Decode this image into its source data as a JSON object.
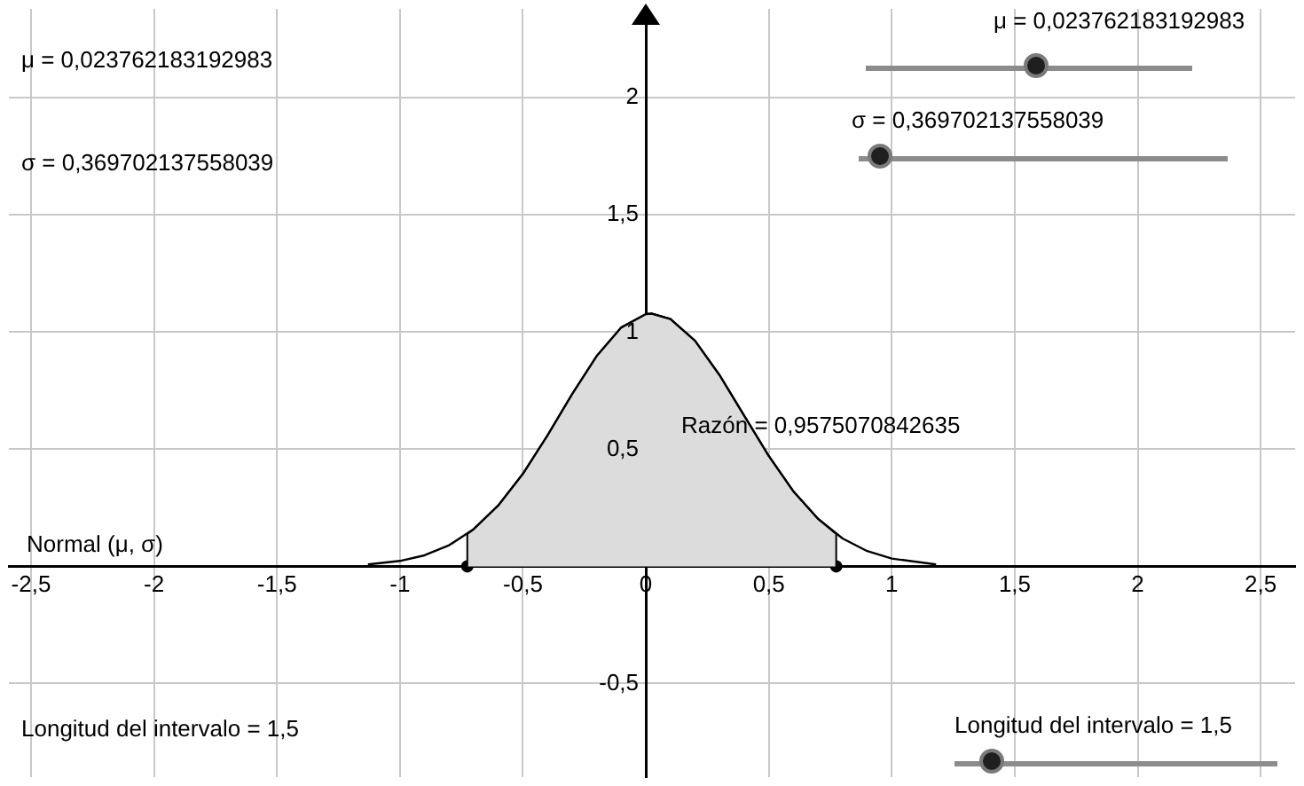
{
  "chart_data": {
    "type": "line",
    "xlim": [
      -2.59,
      2.64
    ],
    "ylim": [
      -0.9,
      2.38
    ],
    "xticks": [
      {
        "value": -2.5,
        "label": "-2,5"
      },
      {
        "value": -2,
        "label": "-2"
      },
      {
        "value": -1.5,
        "label": "-1,5"
      },
      {
        "value": -1,
        "label": "-1"
      },
      {
        "value": -0.5,
        "label": "-0,5"
      },
      {
        "value": 0,
        "label": "0"
      },
      {
        "value": 0.5,
        "label": "0,5"
      },
      {
        "value": 1,
        "label": "1"
      },
      {
        "value": 1.5,
        "label": "1,5"
      },
      {
        "value": 2,
        "label": "2"
      },
      {
        "value": 2.5,
        "label": "2,5"
      }
    ],
    "yticks": [
      {
        "value": -0.5,
        "label": "-0,5"
      },
      {
        "value": 0,
        "label": null
      },
      {
        "value": 0.5,
        "label": "0,5"
      },
      {
        "value": 1,
        "label": "1"
      },
      {
        "value": 1.5,
        "label": "1,5"
      },
      {
        "value": 2,
        "label": "2"
      }
    ],
    "grid": true,
    "legend": false,
    "series": [
      {
        "name": "Normal (μ, σ)",
        "color": "#000000",
        "x": [
          -1.13,
          -1.0,
          -0.9,
          -0.8,
          -0.7,
          -0.6,
          -0.5,
          -0.4,
          -0.3,
          -0.2,
          -0.1,
          0,
          0.024,
          0.1,
          0.2,
          0.3,
          0.4,
          0.5,
          0.6,
          0.7,
          0.8,
          0.9,
          1.0,
          1.18
        ],
        "values": [
          0.008,
          0.023,
          0.047,
          0.09,
          0.159,
          0.26,
          0.395,
          0.559,
          0.735,
          0.898,
          1.02,
          1.077,
          1.079,
          1.056,
          0.963,
          0.816,
          0.643,
          0.471,
          0.32,
          0.203,
          0.119,
          0.065,
          0.033,
          0.008
        ]
      },
      {
        "type": "area",
        "color": "#dcdcdc",
        "x": [
          -0.726,
          -0.726,
          -0.7,
          -0.6,
          -0.5,
          -0.4,
          -0.3,
          -0.2,
          -0.1,
          0,
          0.024,
          0.1,
          0.2,
          0.3,
          0.4,
          0.5,
          0.6,
          0.7,
          0.774,
          0.774
        ],
        "values": [
          0,
          0.138,
          0.159,
          0.26,
          0.395,
          0.559,
          0.735,
          0.898,
          1.02,
          1.077,
          1.079,
          1.056,
          0.963,
          0.816,
          0.643,
          0.471,
          0.32,
          0.203,
          0.138,
          0
        ]
      },
      {
        "type": "scatter",
        "marker": "circle",
        "color": "#000000",
        "x": [
          -0.726,
          0.774
        ],
        "values": [
          0,
          0
        ]
      }
    ],
    "annotations": [
      "μ = 0,023762183192983",
      "σ = 0,369702137558039",
      "Longitud del intervalo = 1,5",
      "μ = 0,023762183192983",
      "σ = 0,369702137558039",
      "Longitud del intervalo = 1,5",
      "Razón = 0,9575070842635"
    ]
  }
}
